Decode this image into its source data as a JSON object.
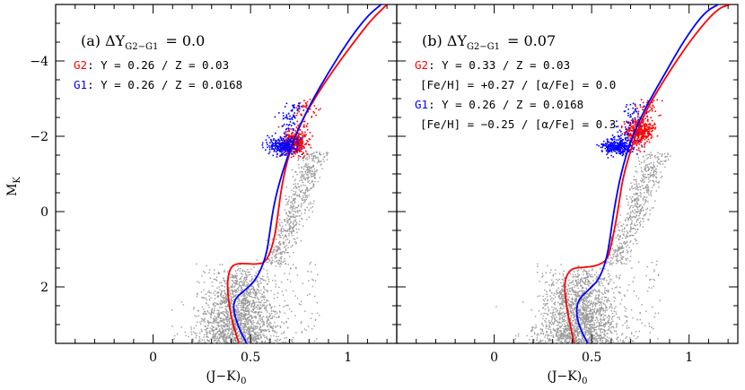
{
  "chart_data": [
    {
      "type": "scatter",
      "panel": "(a)",
      "title_prefix": "(a) ΔY",
      "title_sub": "G2−G1",
      "title_value": "= 0.0",
      "xlabel": "(J−K)",
      "xlabel_sub": "0",
      "ylabel": "M",
      "ylabel_sub": "K",
      "xlim": [
        -0.5,
        1.25
      ],
      "ylim": [
        3.5,
        -5.5
      ],
      "x_ticks": [
        0,
        0.5,
        1
      ],
      "y_ticks": [
        -4,
        -2,
        0,
        2
      ],
      "legend": [
        {
          "tag": "G2",
          "text": ": Y = 0.26 / Z = 0.03",
          "color": "#ff0000"
        },
        {
          "tag": "G1",
          "text": ": Y = 0.26 / Z = 0.0168",
          "color": "#0000ff"
        }
      ],
      "series": [
        {
          "name": "G2",
          "color": "#ff0000",
          "x": [
            0.44,
            0.41,
            0.39,
            0.38,
            0.39,
            0.42,
            0.48,
            0.53,
            0.58,
            0.62,
            0.64,
            0.66,
            0.7,
            0.76,
            0.84,
            0.93,
            1.03,
            1.12,
            1.2
          ],
          "y": [
            3.5,
            3.0,
            2.5,
            1.95,
            1.55,
            1.38,
            1.38,
            1.4,
            1.35,
            0.8,
            0.1,
            -0.7,
            -1.6,
            -2.4,
            -3.1,
            -3.8,
            -4.5,
            -5.1,
            -5.5
          ]
        },
        {
          "name": "G1",
          "color": "#0000ff",
          "x": [
            0.48,
            0.44,
            0.41,
            0.42,
            0.47,
            0.53,
            0.58,
            0.6,
            0.62,
            0.66,
            0.72,
            0.8,
            0.9,
            1.01,
            1.1,
            1.17
          ],
          "y": [
            3.5,
            3.1,
            2.6,
            2.3,
            2.1,
            1.8,
            1.2,
            0.5,
            -0.2,
            -1.0,
            -1.9,
            -2.8,
            -3.7,
            -4.6,
            -5.2,
            -5.5
          ]
        }
      ]
    },
    {
      "type": "scatter",
      "panel": "(b)",
      "title_prefix": "(b) ΔY",
      "title_sub": "G2−G1",
      "title_value": "= 0.07",
      "xlabel": "(J−K)",
      "xlabel_sub": "0",
      "xlim": [
        -0.5,
        1.25
      ],
      "ylim": [
        3.5,
        -5.5
      ],
      "x_ticks": [
        0,
        0.5,
        1
      ],
      "y_ticks": [
        -4,
        -2,
        0,
        2
      ],
      "legend": [
        {
          "tag": "G2",
          "text": ": Y = 0.33 / Z = 0.03",
          "color": "#ff0000"
        },
        {
          "tag": "",
          "text": "[Fe/H] = +0.27 / [α/Fe] = 0.0",
          "color": "#000000"
        },
        {
          "tag": "G1",
          "text": ": Y = 0.26 / Z = 0.0168",
          "color": "#0000ff"
        },
        {
          "tag": "",
          "text": "[Fe/H] = −0.25 / [α/Fe] = 0.3",
          "color": "#000000"
        }
      ],
      "series": [
        {
          "name": "G2",
          "color": "#ff0000",
          "x": [
            0.41,
            0.39,
            0.37,
            0.36,
            0.37,
            0.4,
            0.46,
            0.52,
            0.58,
            0.6,
            0.62,
            0.64,
            0.66,
            0.71,
            0.77,
            0.86,
            0.96,
            1.06,
            1.15,
            1.21
          ],
          "y": [
            3.5,
            3.0,
            2.5,
            2.0,
            1.7,
            1.5,
            1.48,
            1.45,
            1.3,
            0.9,
            0.4,
            -0.2,
            -0.9,
            -1.8,
            -2.6,
            -3.4,
            -4.2,
            -4.9,
            -5.4,
            -5.5
          ]
        },
        {
          "name": "G1",
          "color": "#0000ff",
          "x": [
            0.48,
            0.44,
            0.42,
            0.43,
            0.48,
            0.54,
            0.58,
            0.6,
            0.62,
            0.65,
            0.7,
            0.78,
            0.88,
            0.98,
            1.08,
            1.15
          ],
          "y": [
            3.5,
            3.1,
            2.7,
            2.35,
            2.1,
            1.8,
            1.2,
            0.5,
            -0.2,
            -1.0,
            -1.9,
            -2.8,
            -3.7,
            -4.6,
            -5.3,
            -5.5
          ]
        }
      ]
    }
  ]
}
